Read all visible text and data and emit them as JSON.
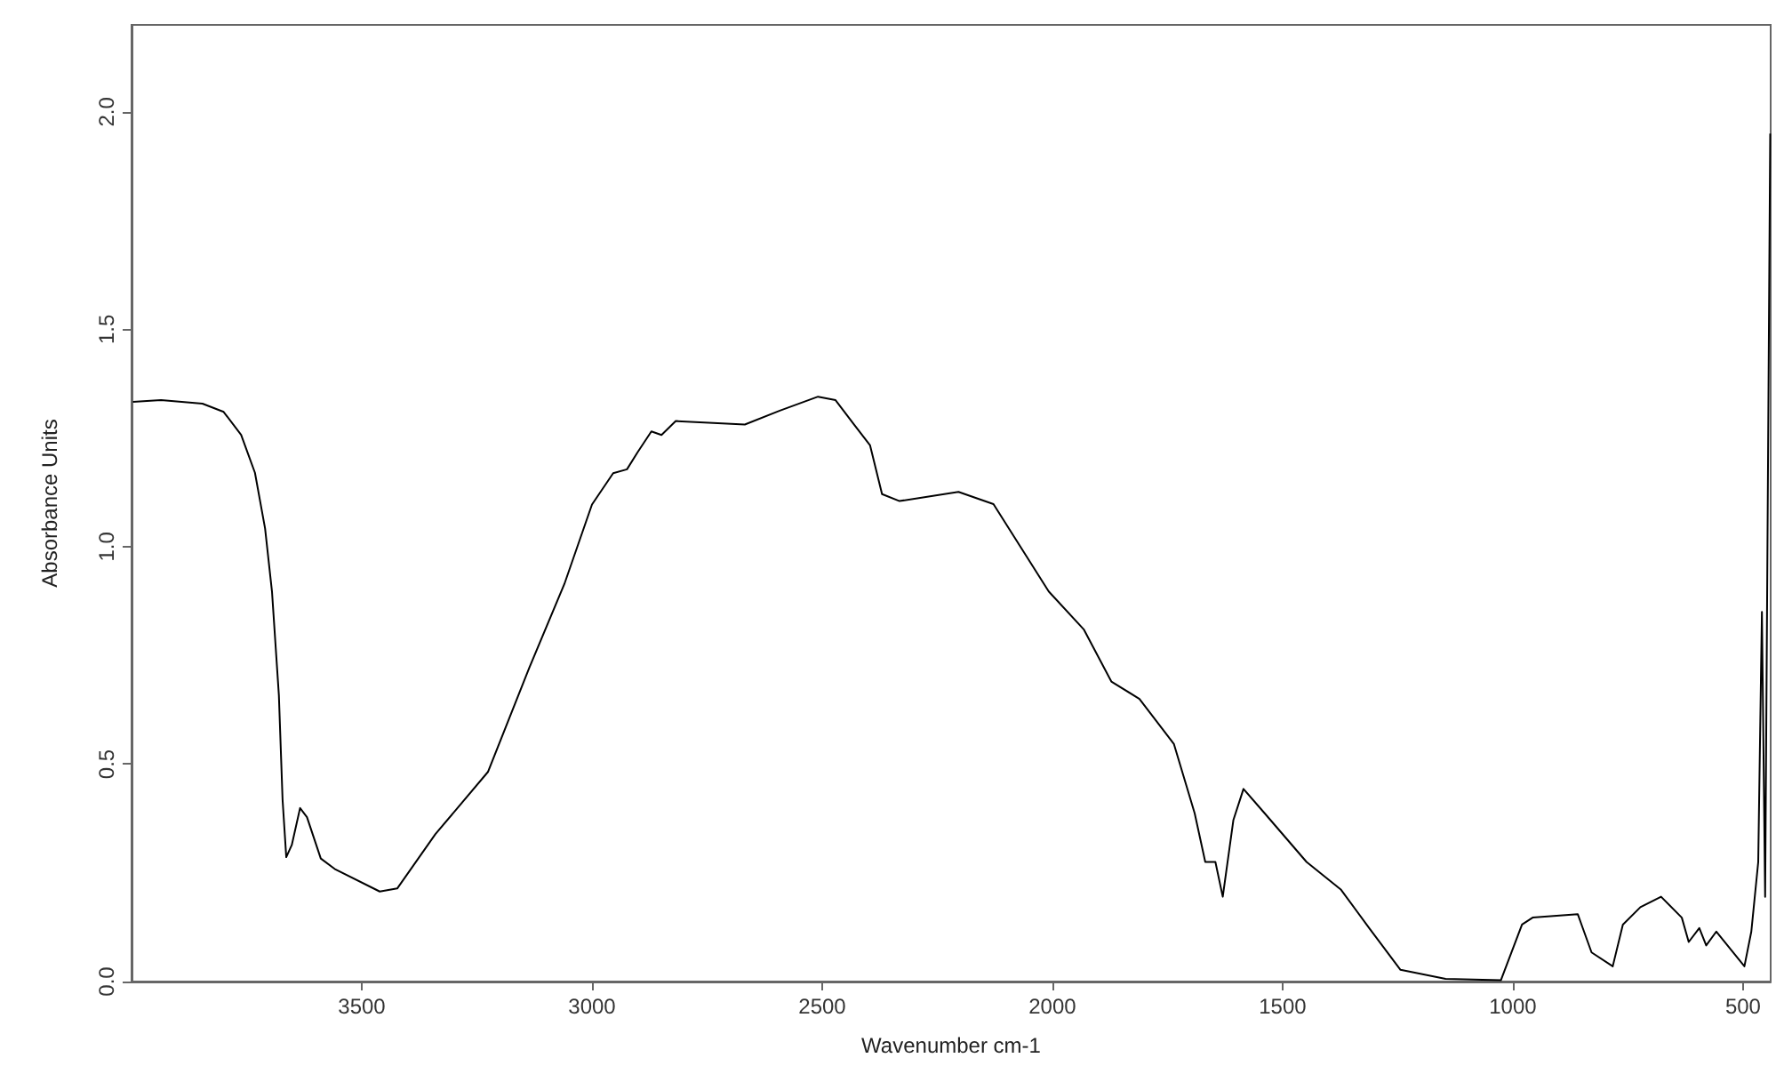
{
  "chart_data": {
    "type": "line",
    "xlabel": "Wavenumber cm-1",
    "ylabel": "Absorbance Units",
    "xlim": [
      4000,
      440
    ],
    "ylim": [
      0,
      2.2
    ],
    "xticks": [
      3500,
      3000,
      2500,
      2000,
      1500,
      1000,
      500
    ],
    "yticks": [
      {
        "value": 0,
        "label": "0.0"
      },
      {
        "value": 0.5,
        "label": "0.5"
      },
      {
        "value": 1,
        "label": "1.0"
      },
      {
        "value": 1.5,
        "label": "1.5"
      },
      {
        "value": 2,
        "label": "2.0"
      }
    ],
    "grid": false,
    "marker": "none",
    "line_style": "solid",
    "series": [
      {
        "color": "#000000",
        "x": [
          3997,
          3936,
          3846,
          3800,
          3762,
          3732,
          3710,
          3695,
          3680,
          3672,
          3664,
          3652,
          3634,
          3619,
          3589,
          3559,
          3461,
          3423,
          3340,
          3226,
          3136,
          3060,
          3000,
          2954,
          2924,
          2901,
          2871,
          2849,
          2818,
          2668,
          2592,
          2509,
          2471,
          2431,
          2396,
          2370,
          2332,
          2204,
          2128,
          2008,
          1932,
          1872,
          1811,
          1736,
          1691,
          1668,
          1646,
          1630,
          1607,
          1585,
          1539,
          1448,
          1373,
          1312,
          1244,
          1146,
          1026,
          980,
          957,
          859,
          829,
          783,
          761,
          723,
          678,
          633,
          618,
          595,
          580,
          558,
          497,
          482,
          467,
          459,
          452,
          441
        ],
        "values": [
          1.333,
          1.337,
          1.329,
          1.31,
          1.257,
          1.17,
          1.042,
          0.897,
          0.658,
          0.418,
          0.286,
          0.314,
          0.399,
          0.378,
          0.283,
          0.259,
          0.207,
          0.214,
          0.339,
          0.482,
          0.722,
          0.914,
          1.097,
          1.169,
          1.178,
          1.217,
          1.265,
          1.257,
          1.289,
          1.281,
          1.313,
          1.345,
          1.337,
          1.281,
          1.233,
          1.121,
          1.105,
          1.126,
          1.098,
          0.897,
          0.81,
          0.69,
          0.65,
          0.546,
          0.387,
          0.275,
          0.275,
          0.195,
          0.371,
          0.443,
          0.387,
          0.275,
          0.211,
          0.123,
          0.027,
          0.006,
          0.003,
          0.131,
          0.147,
          0.155,
          0.067,
          0.035,
          0.131,
          0.171,
          0.195,
          0.147,
          0.091,
          0.123,
          0.083,
          0.115,
          0.035,
          0.115,
          0.275,
          0.85,
          0.195,
          1.95
        ]
      }
    ]
  }
}
